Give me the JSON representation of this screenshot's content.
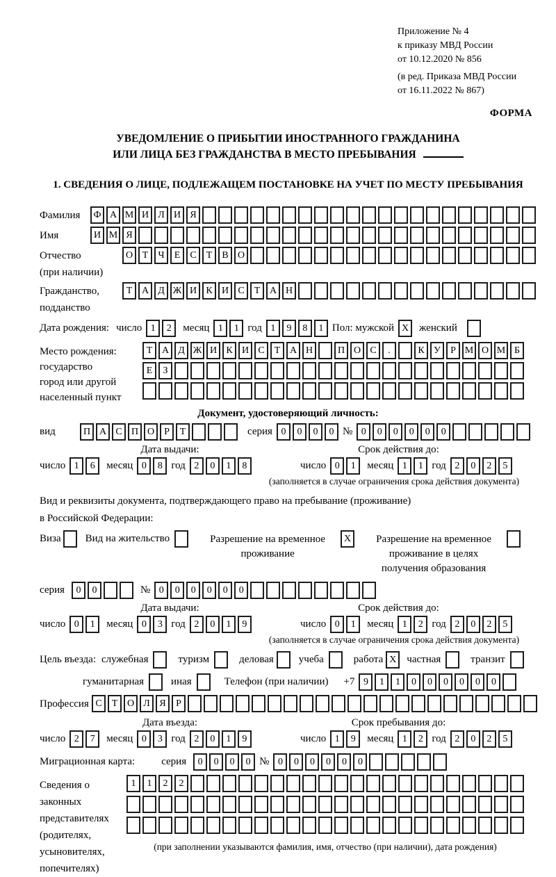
{
  "header": {
    "appendix": [
      "Приложение № 4",
      "к приказу МВД России",
      "от 10.12.2020 № 856"
    ],
    "amendment": [
      "(в ред. Приказа МВД России",
      "от 16.11.2022 № 867)"
    ],
    "form_label": "ФОРМА",
    "title_line1": "УВЕДОМЛЕНИЕ О ПРИБЫТИИ ИНОСТРАННОГО ГРАЖДАНИНА",
    "title_line2": "ИЛИ ЛИЦА БЕЗ ГРАЖДАНСТВА В МЕСТО ПРЕБЫВАНИЯ",
    "section1_heading": "1. СВЕДЕНИЯ О ЛИЦЕ, ПОДЛЕЖАЩЕМ ПОСТАНОВКЕ НА УЧЕТ ПО МЕСТУ ПРЕБЫВАНИЯ"
  },
  "person": {
    "surname": {
      "label": "Фамилия",
      "value": "ФАМИЛИЯ"
    },
    "name": {
      "label": "Имя",
      "value": "ИМЯ"
    },
    "patronymic": {
      "label": "Отчество",
      "sublabel": "(при наличии)",
      "value": "ОТЧЕСТВО"
    },
    "citizenship": {
      "label": "Гражданство,",
      "sublabel": "подданство",
      "value": "ТАДЖИКИСТАН"
    },
    "birth_date": {
      "label": "Дата рождения:",
      "day_label": "число",
      "day": "12",
      "month_label": "месяц",
      "month": "11",
      "year_label": "год",
      "year": "1981"
    },
    "sex": {
      "label": "Пол: мужской",
      "male_mark": "X",
      "female_label": "женский",
      "female_mark": ""
    },
    "birth_place": {
      "label1": "Место рождения:",
      "label2": "государство",
      "label3": "город или другой",
      "label4": "населенный пункт",
      "row1": "ТАДЖИКИСТАН ПОС. КУРМОМБ",
      "row2": "ЕЗ",
      "row3": ""
    }
  },
  "identity_doc": {
    "heading": "Документ, удостоверяющий личность:",
    "type_label": "вид",
    "type": "ПАСПОРТ",
    "series_label": "серия",
    "series": "0000",
    "number_label": "№",
    "number": "000000",
    "issue_label": "Дата выдачи:",
    "issue": {
      "day_label": "число",
      "day": "16",
      "month_label": "месяц",
      "month": "08",
      "year_label": "год",
      "year": "2018"
    },
    "valid_label": "Срок действия до:",
    "valid": {
      "day_label": "число",
      "day": "01",
      "month_label": "месяц",
      "month": "11",
      "year_label": "год",
      "year": "2025"
    },
    "note": "(заполняется в случае ограничения срока действия документа)"
  },
  "residence_doc": {
    "line1": "Вид и реквизиты документа, подтверждающего право на пребывание (проживание)",
    "line2": "в Российской Федерации:",
    "options": [
      {
        "label": "Виза",
        "mark": ""
      },
      {
        "label": "Вид на жительство",
        "mark": ""
      },
      {
        "label": "Разрешение на временное проживание",
        "mark": "X"
      },
      {
        "label": "Разрешение на временное проживание в целях получения образования",
        "mark": ""
      }
    ],
    "series_label": "серия",
    "series": "00",
    "number_label": "№",
    "number": "000000",
    "issue_label": "Дата выдачи:",
    "issue": {
      "day_label": "число",
      "day": "01",
      "month_label": "месяц",
      "month": "03",
      "year_label": "год",
      "year": "2019"
    },
    "valid_label": "Срок действия до:",
    "valid": {
      "day_label": "число",
      "day": "01",
      "month_label": "месяц",
      "month": "12",
      "year_label": "год",
      "year": "2025"
    },
    "note": "(заполняется в случае ограничения срока действия документа)"
  },
  "purpose": {
    "label": "Цель въезда:",
    "options": [
      {
        "label": "служебная",
        "mark": ""
      },
      {
        "label": "туризм",
        "mark": ""
      },
      {
        "label": "деловая",
        "mark": ""
      },
      {
        "label": "учеба",
        "mark": ""
      },
      {
        "label": "работа",
        "mark": "X"
      },
      {
        "label": "частная",
        "mark": ""
      },
      {
        "label": "транзит",
        "mark": ""
      },
      {
        "label": "гуманитарная",
        "mark": ""
      },
      {
        "label": "иная",
        "mark": ""
      }
    ],
    "phone_label": "Телефон (при наличии)",
    "phone_prefix": "+7",
    "phone": "911000000"
  },
  "profession": {
    "label": "Профессия",
    "value": "СТОЛЯР"
  },
  "entry": {
    "date_label": "Дата въезда:",
    "date": {
      "day_label": "число",
      "day": "27",
      "month_label": "месяц",
      "month": "03",
      "year_label": "год",
      "year": "2019"
    },
    "stay_label": "Срок пребывания до:",
    "stay": {
      "day_label": "число",
      "day": "19",
      "month_label": "месяц",
      "month": "12",
      "year_label": "год",
      "year": "2025"
    }
  },
  "migration_card": {
    "label": "Миграционная карта:",
    "series_label": "серия",
    "series": "0000",
    "number_label": "№",
    "number": "000000"
  },
  "representatives": {
    "label1": "Сведения о",
    "label2": "законных",
    "label3": "представителях",
    "label4": "(родителях,",
    "label5": "усыновителях,",
    "label6": "попечителях)",
    "row1": "1122",
    "row2": "",
    "row3": "",
    "note": "(при заполнении указываются фамилия, имя, отчество (при наличии), дата рождения)"
  }
}
